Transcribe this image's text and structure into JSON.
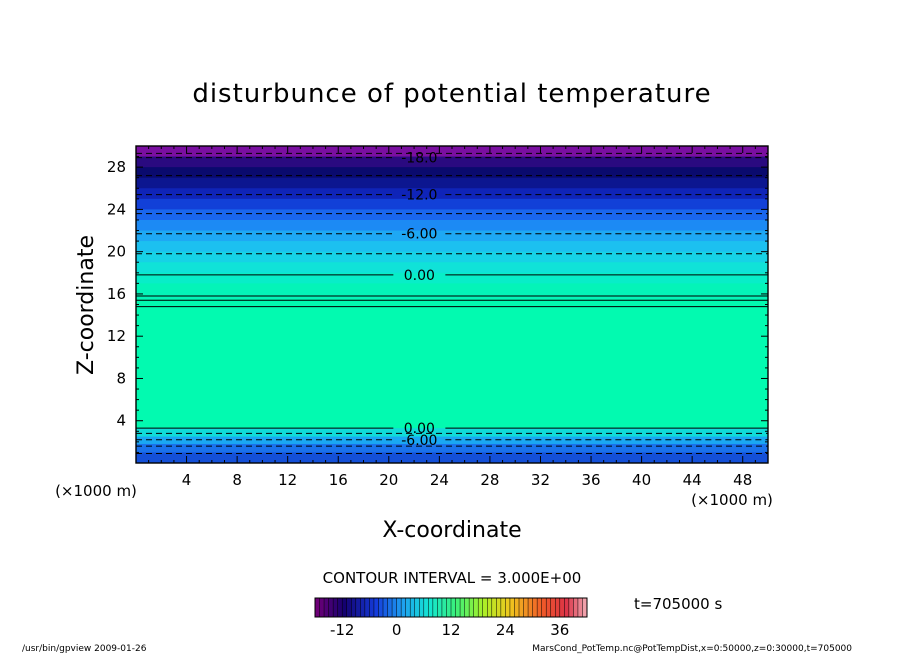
{
  "chart_data": {
    "type": "heatmap",
    "title": "disturbunce of potential temperature",
    "xlabel": "X-coordinate",
    "ylabel": "Z-coordinate",
    "x_unit": "(×1000 m)",
    "y_unit": "(×1000 m)",
    "xlim": [
      0,
      50
    ],
    "ylim": [
      0,
      30
    ],
    "x_ticks": [
      4,
      8,
      12,
      16,
      20,
      24,
      28,
      32,
      36,
      40,
      44,
      48
    ],
    "y_ticks": [
      4,
      8,
      12,
      16,
      20,
      24,
      28
    ],
    "contour_interval_text": "CONTOUR INTERVAL = 3.000E+00",
    "time_label": "t=705000 s",
    "contour_levels": [
      {
        "z": 29.3,
        "value": -21,
        "style": "dashed",
        "label": ""
      },
      {
        "z": 28.9,
        "value": -18,
        "style": "dashed",
        "label": "-18.0"
      },
      {
        "z": 27.2,
        "value": -15,
        "style": "dashed",
        "label": ""
      },
      {
        "z": 25.4,
        "value": -12,
        "style": "dashed",
        "label": "-12.0"
      },
      {
        "z": 23.6,
        "value": -9,
        "style": "dashed",
        "label": ""
      },
      {
        "z": 21.7,
        "value": -6,
        "style": "dashed",
        "label": "-6.00"
      },
      {
        "z": 19.8,
        "value": -3,
        "style": "dashed",
        "label": ""
      },
      {
        "z": 17.8,
        "value": 0,
        "style": "solid",
        "label": "0.00"
      },
      {
        "z": 15.8,
        "value": 3,
        "style": "solid",
        "label": ""
      },
      {
        "z": 15.4,
        "value": 3,
        "style": "solid",
        "label": ""
      },
      {
        "z": 14.8,
        "value": 3,
        "style": "solid",
        "label": ""
      },
      {
        "z": 3.3,
        "value": 0,
        "style": "solid",
        "label": "0.00"
      },
      {
        "z": 2.8,
        "value": -3,
        "style": "dashed",
        "label": ""
      },
      {
        "z": 2.2,
        "value": -6,
        "style": "dashed",
        "label": "-6.00"
      },
      {
        "z": 1.6,
        "value": -9,
        "style": "dashed",
        "label": ""
      },
      {
        "z": 0.9,
        "value": -12,
        "style": "dashed",
        "label": ""
      }
    ],
    "color_bands": [
      {
        "z0": 29.0,
        "z1": 30.0,
        "color": "#7a0fa0"
      },
      {
        "z0": 28.0,
        "z1": 29.0,
        "color": "#2a0a80"
      },
      {
        "z0": 27.0,
        "z1": 28.0,
        "color": "#0a0a6e"
      },
      {
        "z0": 26.0,
        "z1": 27.0,
        "color": "#0c1690"
      },
      {
        "z0": 25.0,
        "z1": 26.0,
        "color": "#0f24b8"
      },
      {
        "z0": 24.0,
        "z1": 25.0,
        "color": "#1240d8"
      },
      {
        "z0": 23.0,
        "z1": 24.0,
        "color": "#1a66ee"
      },
      {
        "z0": 22.0,
        "z1": 23.0,
        "color": "#1c8af4"
      },
      {
        "z0": 21.0,
        "z1": 22.0,
        "color": "#1ea8f4"
      },
      {
        "z0": 20.0,
        "z1": 21.0,
        "color": "#1cc0f0"
      },
      {
        "z0": 19.0,
        "z1": 20.0,
        "color": "#16d2e6"
      },
      {
        "z0": 18.0,
        "z1": 19.0,
        "color": "#10e2d8"
      },
      {
        "z0": 17.0,
        "z1": 18.0,
        "color": "#08eec8"
      },
      {
        "z0": 15.5,
        "z1": 17.0,
        "color": "#04f4b8"
      },
      {
        "z0": 3.3,
        "z1": 15.5,
        "color": "#02fab0"
      },
      {
        "z0": 2.5,
        "z1": 3.3,
        "color": "#10dcd8"
      },
      {
        "z0": 1.8,
        "z1": 2.5,
        "color": "#1aa8f2"
      },
      {
        "z0": 1.0,
        "z1": 1.8,
        "color": "#1a72ec"
      },
      {
        "z0": 0.0,
        "z1": 1.0,
        "color": "#1450d8"
      }
    ],
    "colorbar": {
      "min": -18,
      "max": 42,
      "step": 1,
      "tick_labels": [
        "-12",
        "0",
        "12",
        "24",
        "36"
      ],
      "tick_values": [
        -12,
        0,
        12,
        24,
        36
      ]
    },
    "footer_left": "/usr/bin/gpview   2009-01-26",
    "footer_right": "MarsCond_PotTemp.nc@PotTempDist,x=0:50000,z=0:30000,t=705000"
  }
}
